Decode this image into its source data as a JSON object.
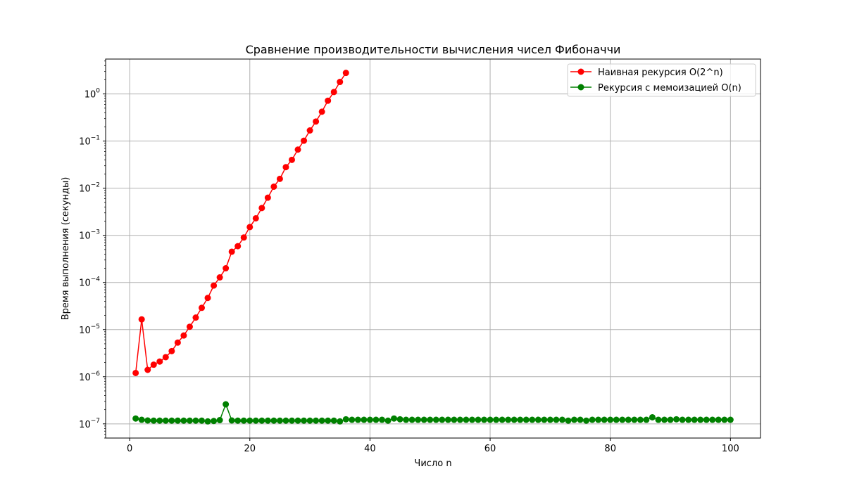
{
  "chart_data": {
    "type": "line",
    "title": "Сравнение производительности вычисления чисел Фибоначчи",
    "xlabel": "Число n",
    "ylabel": "Время выполнения (секунды)",
    "xlim": [
      -4,
      105
    ],
    "ylim": [
      5e-08,
      5.5
    ],
    "yscale": "log",
    "grid": true,
    "legend_position": "top-right",
    "x_ticks": [
      {
        "value": 0,
        "label": "0"
      },
      {
        "value": 20,
        "label": "20"
      },
      {
        "value": 40,
        "label": "40"
      },
      {
        "value": 60,
        "label": "60"
      },
      {
        "value": 80,
        "label": "80"
      },
      {
        "value": 100,
        "label": "100"
      }
    ],
    "y_ticks": [
      {
        "value": 1e-07,
        "base": "10",
        "exp": "−7"
      },
      {
        "value": 1e-06,
        "base": "10",
        "exp": "−6"
      },
      {
        "value": 1e-05,
        "base": "10",
        "exp": "−5"
      },
      {
        "value": 0.0001,
        "base": "10",
        "exp": "−4"
      },
      {
        "value": 0.001,
        "base": "10",
        "exp": "−3"
      },
      {
        "value": 0.01,
        "base": "10",
        "exp": "−2"
      },
      {
        "value": 0.1,
        "base": "10",
        "exp": "−1"
      },
      {
        "value": 1,
        "base": "10",
        "exp": "0"
      }
    ],
    "series": [
      {
        "name": "Наивная рекурсия O(2^n)",
        "color": "#ff0000",
        "x": [
          1,
          2,
          3,
          4,
          5,
          6,
          7,
          8,
          9,
          10,
          11,
          12,
          13,
          14,
          15,
          16,
          17,
          18,
          19,
          20,
          21,
          22,
          23,
          24,
          25,
          26,
          27,
          28,
          29,
          30,
          31,
          32,
          33,
          34,
          35,
          36
        ],
        "y": [
          1.2e-06,
          1.65e-05,
          1.4e-06,
          1.8e-06,
          2.1e-06,
          2.6e-06,
          3.5e-06,
          5.3e-06,
          7.5e-06,
          1.15e-05,
          1.8e-05,
          2.9e-05,
          4.7e-05,
          8.6e-05,
          0.000128,
          0.0002,
          0.00045,
          0.00059,
          0.0009,
          0.0015,
          0.0023,
          0.0038,
          0.0063,
          0.0108,
          0.0158,
          0.028,
          0.04,
          0.066,
          0.102,
          0.168,
          0.26,
          0.42,
          0.72,
          1.1,
          1.8,
          2.8
        ]
      },
      {
        "name": "Рекурсия с мемоизацией O(n)",
        "color": "#008000",
        "x": [
          1,
          2,
          3,
          4,
          5,
          6,
          7,
          8,
          9,
          10,
          11,
          12,
          13,
          14,
          15,
          16,
          17,
          18,
          19,
          20,
          21,
          22,
          23,
          24,
          25,
          26,
          27,
          28,
          29,
          30,
          31,
          32,
          33,
          34,
          35,
          36,
          37,
          38,
          39,
          40,
          41,
          42,
          43,
          44,
          45,
          46,
          47,
          48,
          49,
          50,
          51,
          52,
          53,
          54,
          55,
          56,
          57,
          58,
          59,
          60,
          61,
          62,
          63,
          64,
          65,
          66,
          67,
          68,
          69,
          70,
          71,
          72,
          73,
          74,
          75,
          76,
          77,
          78,
          79,
          80,
          81,
          82,
          83,
          84,
          85,
          86,
          87,
          88,
          89,
          90,
          91,
          92,
          93,
          94,
          95,
          96,
          97,
          98,
          99,
          100
        ],
        "y": [
          1.3e-07,
          1.22e-07,
          1.18e-07,
          1.17e-07,
          1.17e-07,
          1.17e-07,
          1.17e-07,
          1.17e-07,
          1.17e-07,
          1.17e-07,
          1.17e-07,
          1.17e-07,
          1.13e-07,
          1.15e-07,
          1.2e-07,
          2.6e-07,
          1.18e-07,
          1.17e-07,
          1.17e-07,
          1.17e-07,
          1.17e-07,
          1.17e-07,
          1.17e-07,
          1.17e-07,
          1.17e-07,
          1.17e-07,
          1.17e-07,
          1.17e-07,
          1.17e-07,
          1.17e-07,
          1.17e-07,
          1.17e-07,
          1.17e-07,
          1.17e-07,
          1.13e-07,
          1.25e-07,
          1.22e-07,
          1.22e-07,
          1.22e-07,
          1.22e-07,
          1.22e-07,
          1.22e-07,
          1.17e-07,
          1.3e-07,
          1.25e-07,
          1.22e-07,
          1.22e-07,
          1.22e-07,
          1.22e-07,
          1.22e-07,
          1.22e-07,
          1.22e-07,
          1.22e-07,
          1.22e-07,
          1.22e-07,
          1.22e-07,
          1.22e-07,
          1.22e-07,
          1.22e-07,
          1.22e-07,
          1.22e-07,
          1.22e-07,
          1.22e-07,
          1.22e-07,
          1.22e-07,
          1.22e-07,
          1.22e-07,
          1.22e-07,
          1.22e-07,
          1.22e-07,
          1.22e-07,
          1.22e-07,
          1.17e-07,
          1.22e-07,
          1.22e-07,
          1.17e-07,
          1.22e-07,
          1.22e-07,
          1.22e-07,
          1.22e-07,
          1.22e-07,
          1.22e-07,
          1.22e-07,
          1.22e-07,
          1.22e-07,
          1.22e-07,
          1.38e-07,
          1.22e-07,
          1.22e-07,
          1.22e-07,
          1.25e-07,
          1.22e-07,
          1.22e-07,
          1.22e-07,
          1.22e-07,
          1.22e-07,
          1.22e-07,
          1.22e-07,
          1.22e-07,
          1.22e-07
        ]
      }
    ]
  }
}
